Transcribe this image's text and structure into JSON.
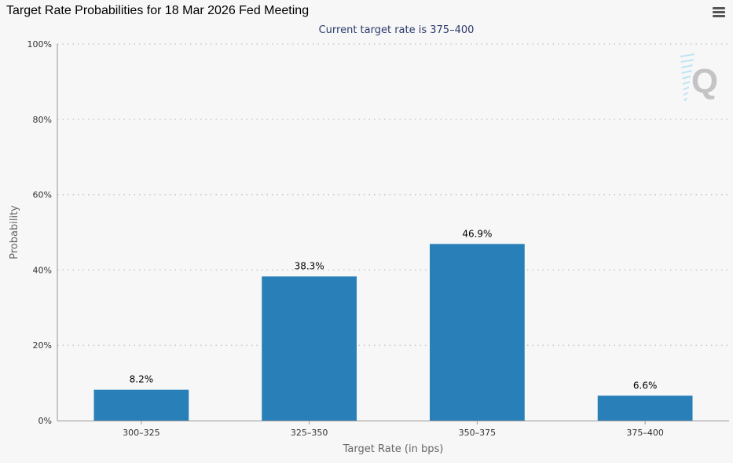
{
  "header": {
    "title": "Target Rate Probabilities for 18 Mar 2026 Fed Meeting",
    "menu_icon": "hamburger-menu-icon"
  },
  "watermark": {
    "letter": "Q",
    "icon": "quikstrike-logo-icon"
  },
  "colors": {
    "bar": "#2980b9",
    "grid": "#c8c8c8",
    "axis": "#999999",
    "text": "#333333",
    "subtitle": "#2b3a6b"
  },
  "chart_data": {
    "type": "bar",
    "title": "Target Rate Probabilities for 18 Mar 2026 Fed Meeting",
    "subtitle": "Current target rate is 375–400",
    "xlabel": "Target Rate (in bps)",
    "ylabel": "Probability",
    "categories": [
      "300–325",
      "325–350",
      "350–375",
      "375–400"
    ],
    "values": [
      8.2,
      38.3,
      46.9,
      6.6
    ],
    "data_labels": [
      "8.2%",
      "38.3%",
      "46.9%",
      "6.6%"
    ],
    "ylim": [
      0,
      100
    ],
    "yticks": [
      0,
      20,
      40,
      60,
      80,
      100
    ],
    "ytick_labels": [
      "0%",
      "20%",
      "40%",
      "60%",
      "80%",
      "100%"
    ],
    "grid": true,
    "legend": "none"
  }
}
